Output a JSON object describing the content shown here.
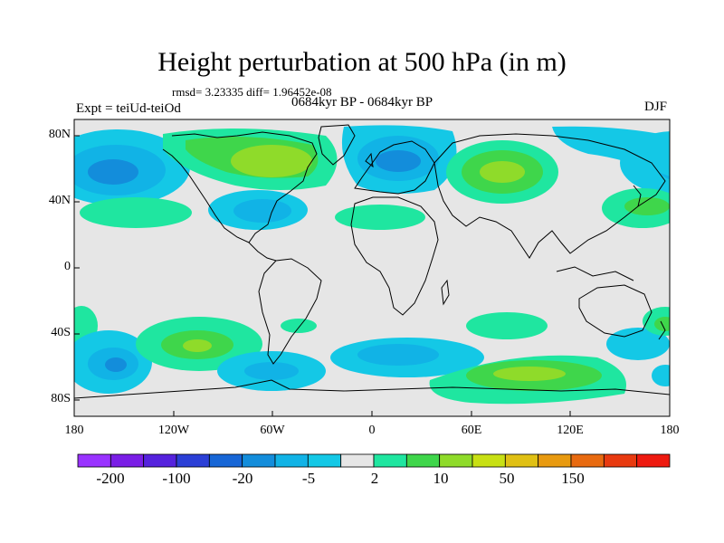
{
  "title": "Height perturbation at 500 hPa (in m)",
  "stats": "rmsd= 3.23335 diff= 1.96452e-08",
  "period": "0684kyr BP - 0684kyr BP",
  "expt": "Expt = teiUd-teiOd",
  "season": "DJF",
  "lat_labels": [
    "80N",
    "40N",
    "0",
    "40S",
    "80S"
  ],
  "lon_labels": [
    "180",
    "120W",
    "60W",
    "0",
    "60E",
    "120E",
    "180"
  ],
  "colorbar": {
    "labels": [
      "-200",
      "-100",
      "-20",
      "-5",
      "2",
      "10",
      "50",
      "150"
    ],
    "colors": [
      "#9933ff",
      "#7a1ee6",
      "#5522dd",
      "#2b3fd6",
      "#1766d6",
      "#138ddb",
      "#11b3e6",
      "#14c8e6",
      "#e6e6e6",
      "#1fe6a0",
      "#3fd64b",
      "#8fdb2a",
      "#c8e014",
      "#e0c014",
      "#e89a10",
      "#e86a10",
      "#e83a10",
      "#ee1a10"
    ]
  },
  "colors": {
    "land_outline": "#000000",
    "background": "#e6e6e6"
  }
}
